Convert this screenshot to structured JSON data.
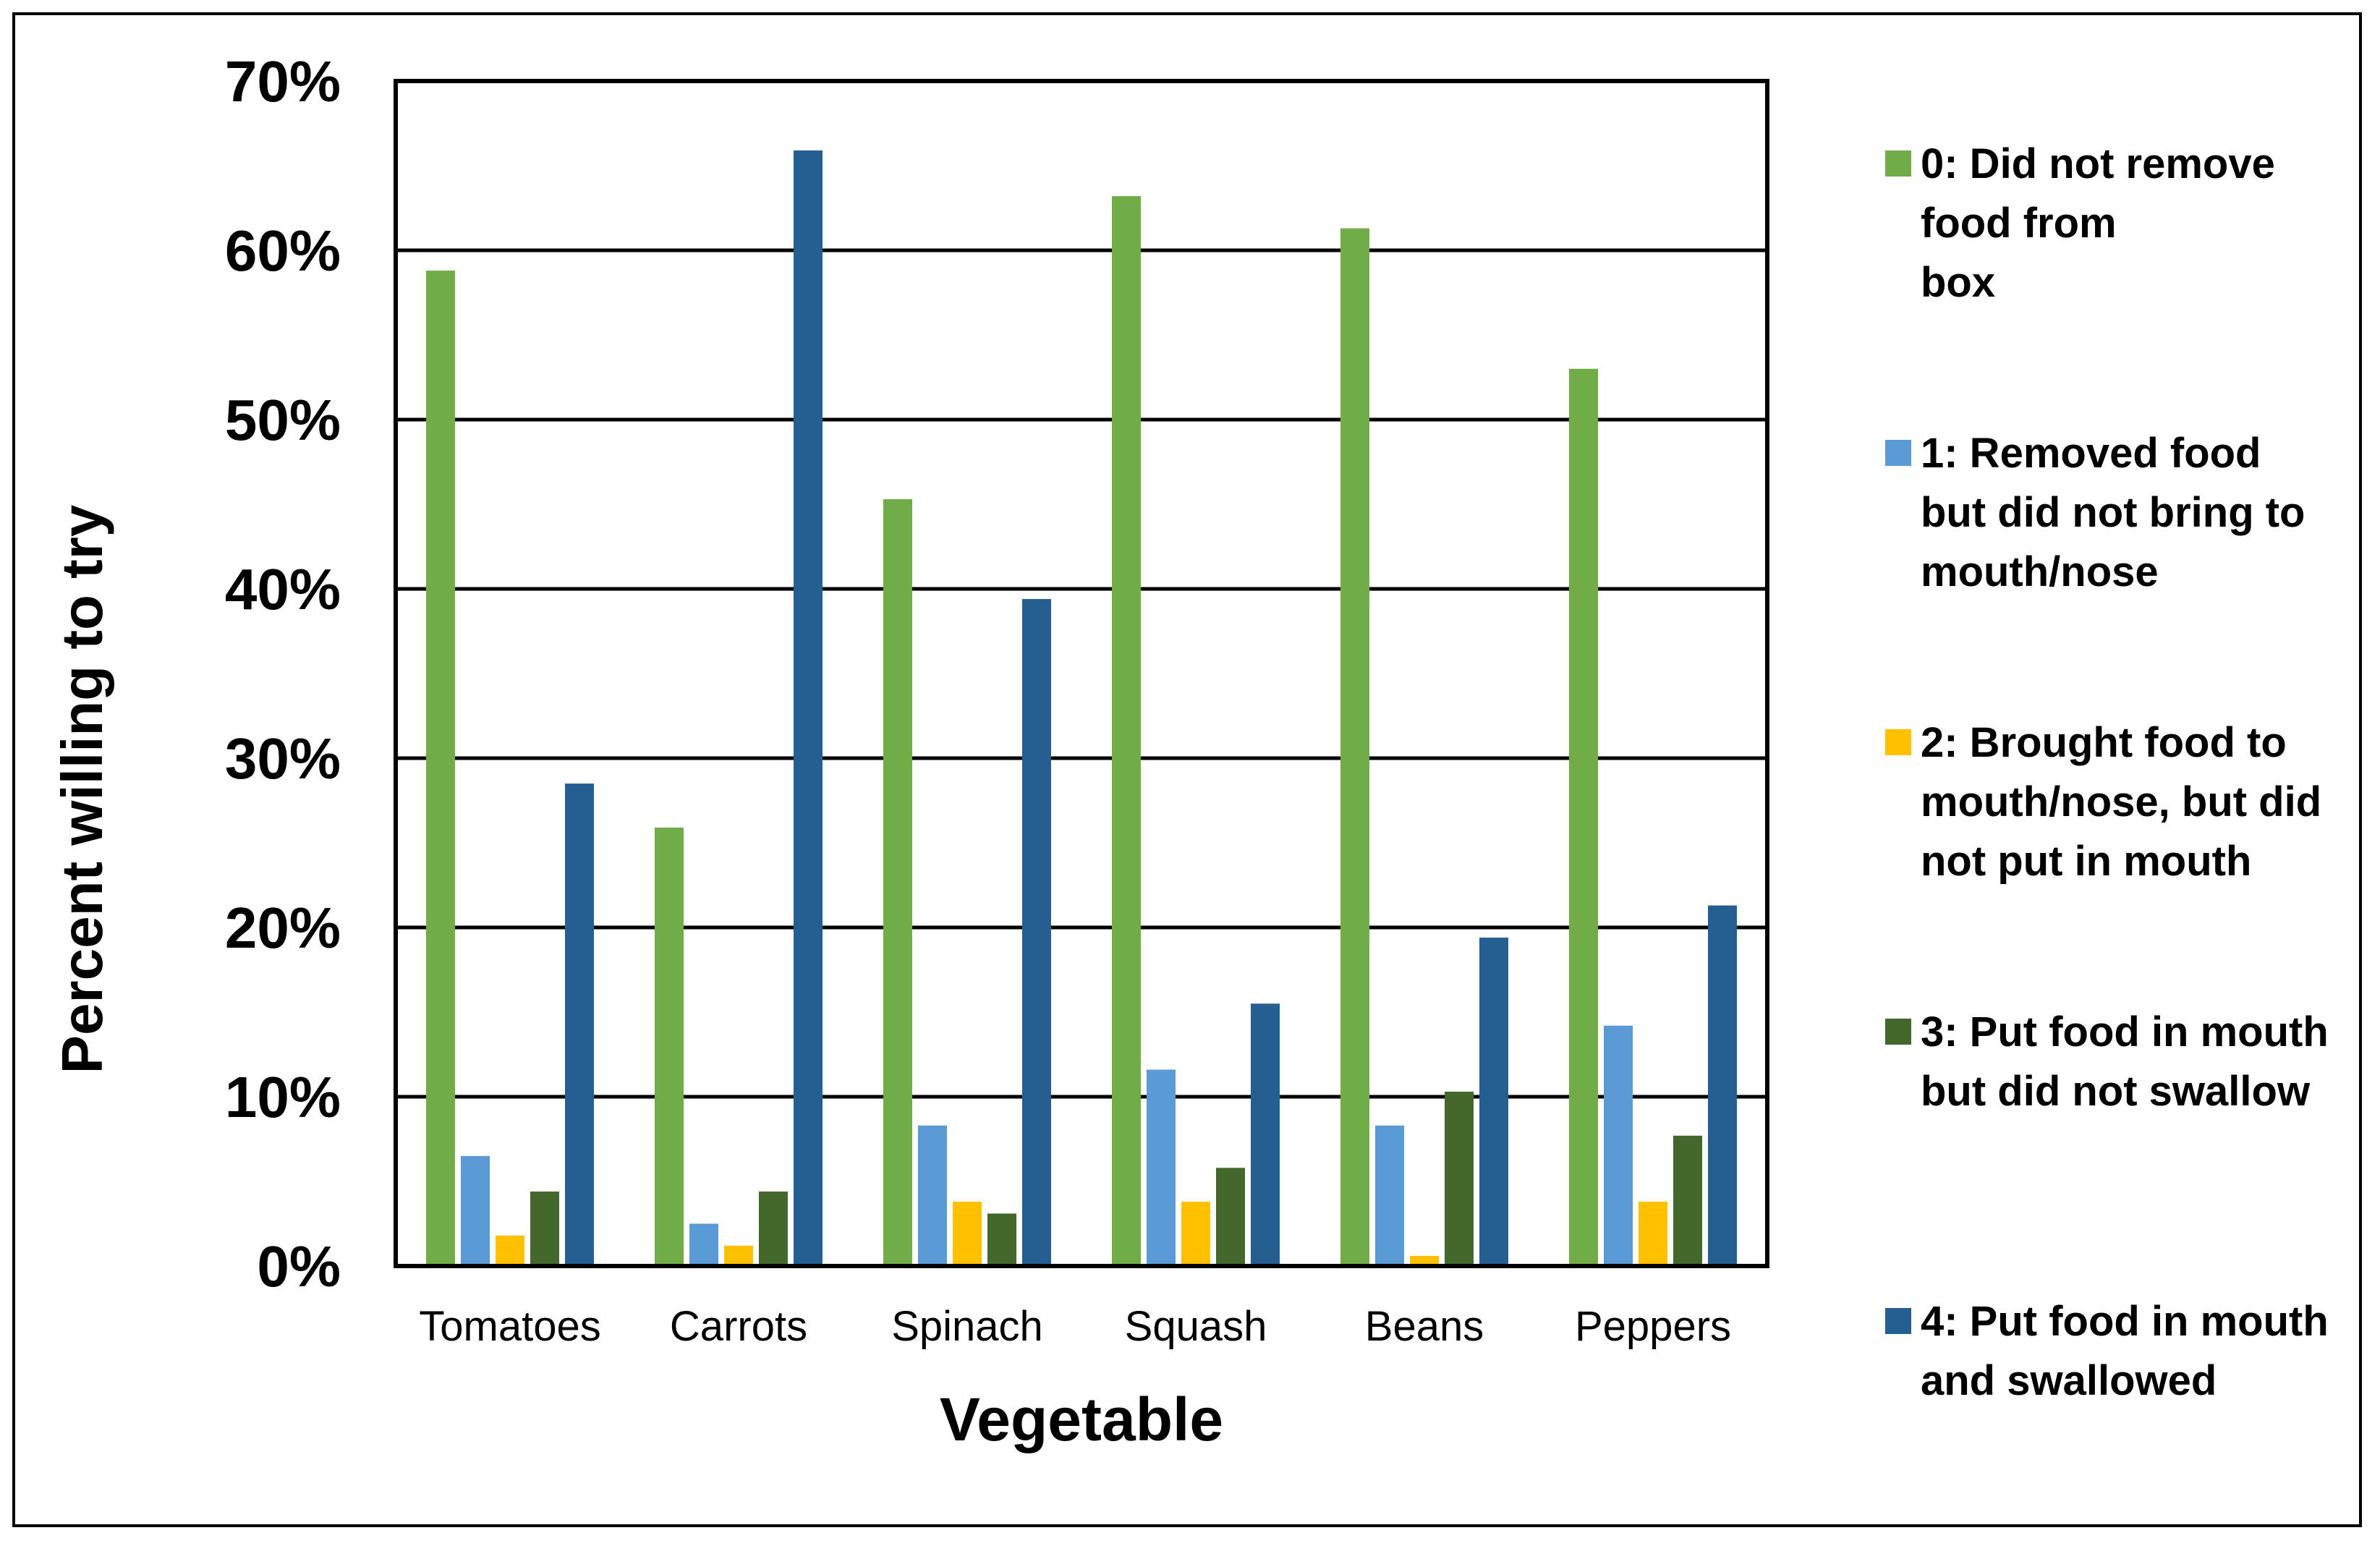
{
  "chart_data": {
    "type": "bar",
    "title": "",
    "xlabel": "Vegetable",
    "ylabel": "Percent willing to try",
    "ylim": [
      0,
      70
    ],
    "yticks": [
      0,
      10,
      20,
      30,
      40,
      50,
      60,
      70
    ],
    "ytick_labels": [
      "0%",
      "10%",
      "20%",
      "30%",
      "40%",
      "50%",
      "60%",
      "70%"
    ],
    "grid": true,
    "legend_position": "right",
    "categories": [
      "Tomatoes",
      "Carrots",
      "Spinach",
      "Squash",
      "Beans",
      "Peppers"
    ],
    "series": [
      {
        "name": "0: Did not remove food from box",
        "legend_lines": [
          "0: Did not remove",
          "food from",
          "box"
        ],
        "color": "#70AD47",
        "values": [
          58.8,
          25.9,
          45.3,
          63.2,
          61.3,
          53.0
        ]
      },
      {
        "name": "1: Removed food but did not bring to mouth/nose",
        "legend_lines": [
          "1: Removed food",
          "but did not bring to",
          "mouth/nose"
        ],
        "color": "#5B9BD5",
        "values": [
          6.5,
          2.5,
          8.3,
          11.6,
          8.3,
          14.2
        ]
      },
      {
        "name": "2: Brought food to mouth/nose, but did not put in mouth",
        "legend_lines": [
          "2: Brought food to",
          "mouth/nose, but did",
          "not put in mouth"
        ],
        "color": "#FFC000",
        "values": [
          1.8,
          1.2,
          3.8,
          3.8,
          0.6,
          3.8
        ]
      },
      {
        "name": "3: Put food in mouth but did not swallow",
        "legend_lines": [
          "3: Put food in mouth",
          "but did not swallow"
        ],
        "color": "#43682B",
        "values": [
          4.4,
          4.4,
          3.1,
          5.8,
          10.3,
          7.7
        ]
      },
      {
        "name": "4: Put food in mouth and swallowed",
        "legend_lines": [
          "4: Put food in mouth",
          "and swallowed"
        ],
        "color": "#255E91",
        "values": [
          28.5,
          65.9,
          39.4,
          15.5,
          19.4,
          21.3
        ]
      }
    ]
  }
}
